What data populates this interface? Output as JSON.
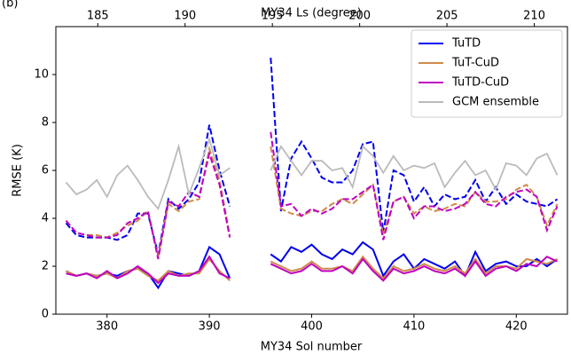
{
  "chart_data": {
    "type": "line",
    "panel_label": "(b)",
    "xlabel": "MY34 Sol number",
    "ylabel": "RMSE (K)",
    "x2label": "MY34 Ls (degree)",
    "xlim": [
      375,
      425
    ],
    "xticks": [
      380,
      390,
      400,
      410,
      420
    ],
    "x2lim": [
      182.6,
      211.9
    ],
    "x2ticks": [
      185,
      190,
      195,
      200,
      205,
      210
    ],
    "ylim": [
      0,
      12
    ],
    "yticks": [
      0,
      2,
      4,
      6,
      8,
      10
    ],
    "legend": "upper right",
    "x": [
      376,
      377,
      378,
      379,
      380,
      381,
      382,
      383,
      384,
      385,
      386,
      387,
      388,
      389,
      390,
      391,
      392,
      393,
      394,
      395,
      396,
      397,
      398,
      399,
      400,
      401,
      402,
      403,
      404,
      405,
      406,
      407,
      408,
      409,
      410,
      411,
      412,
      413,
      414,
      415,
      416,
      417,
      418,
      419,
      420,
      421,
      422,
      423,
      424
    ],
    "series": [
      {
        "name": "TuTD",
        "color": "#0000ee",
        "values": [
          1.8,
          1.6,
          1.7,
          1.6,
          1.7,
          1.6,
          1.8,
          1.9,
          1.7,
          1.1,
          1.8,
          1.7,
          1.6,
          1.8,
          2.8,
          2.5,
          1.5,
          null,
          null,
          null,
          2.5,
          2.2,
          2.8,
          2.6,
          2.9,
          2.5,
          2.3,
          2.7,
          2.5,
          3.0,
          2.7,
          1.6,
          2.2,
          2.5,
          1.9,
          2.3,
          2.1,
          1.9,
          2.2,
          1.6,
          2.6,
          1.8,
          2.1,
          2.2,
          2.0,
          2.0,
          2.3,
          2.0,
          2.3
        ],
        "dashed_values": [
          3.8,
          3.3,
          3.2,
          3.2,
          3.2,
          3.1,
          3.3,
          4.2,
          4.2,
          2.5,
          4.8,
          4.4,
          4.8,
          5.5,
          7.9,
          6.0,
          4.5,
          null,
          null,
          null,
          10.7,
          4.3,
          6.5,
          7.2,
          6.5,
          5.7,
          5.5,
          5.5,
          6.0,
          7.1,
          7.2,
          3.4,
          6.0,
          5.8,
          4.7,
          5.3,
          4.5,
          5.0,
          4.8,
          4.9,
          5.6,
          4.7,
          5.3,
          4.6,
          5.0,
          4.7,
          4.6,
          4.5,
          4.8
        ]
      },
      {
        "name": "TuT-CuD",
        "color": "#d08b4a",
        "values": [
          1.8,
          1.6,
          1.7,
          1.6,
          1.7,
          1.5,
          1.8,
          1.9,
          1.6,
          1.4,
          1.8,
          1.6,
          1.7,
          1.7,
          2.3,
          1.8,
          1.4,
          null,
          null,
          null,
          2.2,
          2.0,
          1.8,
          1.9,
          2.2,
          1.9,
          1.9,
          2.0,
          1.8,
          2.4,
          1.9,
          1.5,
          2.0,
          1.8,
          1.9,
          2.1,
          1.9,
          1.8,
          2.0,
          1.7,
          2.3,
          1.7,
          2.0,
          2.0,
          1.9,
          2.3,
          2.2,
          2.1,
          2.3
        ],
        "dashed_values": [
          3.9,
          3.4,
          3.3,
          3.3,
          3.2,
          3.4,
          3.7,
          3.9,
          4.3,
          2.4,
          4.6,
          4.3,
          4.7,
          4.8,
          6.9,
          5.6,
          3.3,
          null,
          null,
          null,
          7.0,
          4.4,
          4.2,
          4.1,
          4.3,
          4.3,
          4.6,
          4.8,
          4.6,
          5.0,
          5.4,
          3.3,
          4.7,
          4.9,
          4.2,
          4.5,
          4.3,
          4.4,
          4.6,
          4.5,
          5.1,
          4.7,
          4.7,
          4.8,
          5.2,
          5.4,
          4.9,
          3.7,
          4.6
        ]
      },
      {
        "name": "TuTD-CuD",
        "color": "#c000c0",
        "values": [
          1.7,
          1.6,
          1.7,
          1.5,
          1.8,
          1.5,
          1.7,
          2.0,
          1.7,
          1.3,
          1.7,
          1.6,
          1.6,
          1.8,
          2.4,
          1.7,
          1.5,
          null,
          null,
          null,
          2.1,
          1.9,
          1.7,
          1.8,
          2.1,
          1.8,
          1.8,
          2.0,
          1.7,
          2.3,
          1.8,
          1.4,
          1.9,
          1.7,
          1.8,
          2.0,
          1.8,
          1.7,
          1.9,
          1.6,
          2.2,
          1.6,
          1.9,
          2.0,
          1.8,
          2.1,
          2.0,
          2.4,
          2.2
        ],
        "dashed_values": [
          3.9,
          3.4,
          3.3,
          3.2,
          3.2,
          3.3,
          3.8,
          4.0,
          4.3,
          2.3,
          4.7,
          4.5,
          5.1,
          4.9,
          6.7,
          5.4,
          3.2,
          null,
          null,
          null,
          7.6,
          4.5,
          4.6,
          4.1,
          4.4,
          4.2,
          4.4,
          4.8,
          4.8,
          5.1,
          5.4,
          3.1,
          4.7,
          4.9,
          4.0,
          4.5,
          4.5,
          4.3,
          4.4,
          4.6,
          5.1,
          4.6,
          4.5,
          4.9,
          5.1,
          5.2,
          4.9,
          3.5,
          4.5
        ]
      },
      {
        "name": "GCM ensemble",
        "color": "#bbbbbb",
        "values": [
          5.5,
          5.0,
          5.2,
          5.6,
          4.9,
          5.8,
          6.2,
          5.6,
          4.9,
          4.4,
          5.6,
          7.0,
          5.0,
          6.1,
          7.3,
          5.8,
          6.1,
          null,
          null,
          null,
          6.0,
          7.0,
          6.4,
          5.8,
          6.4,
          6.4,
          6.0,
          6.1,
          5.3,
          7.0,
          6.6,
          5.9,
          6.6,
          6.0,
          6.2,
          6.1,
          6.3,
          5.3,
          5.9,
          6.4,
          5.8,
          6.0,
          5.2,
          6.3,
          6.2,
          5.8,
          6.5,
          6.7,
          5.8
        ]
      }
    ]
  }
}
